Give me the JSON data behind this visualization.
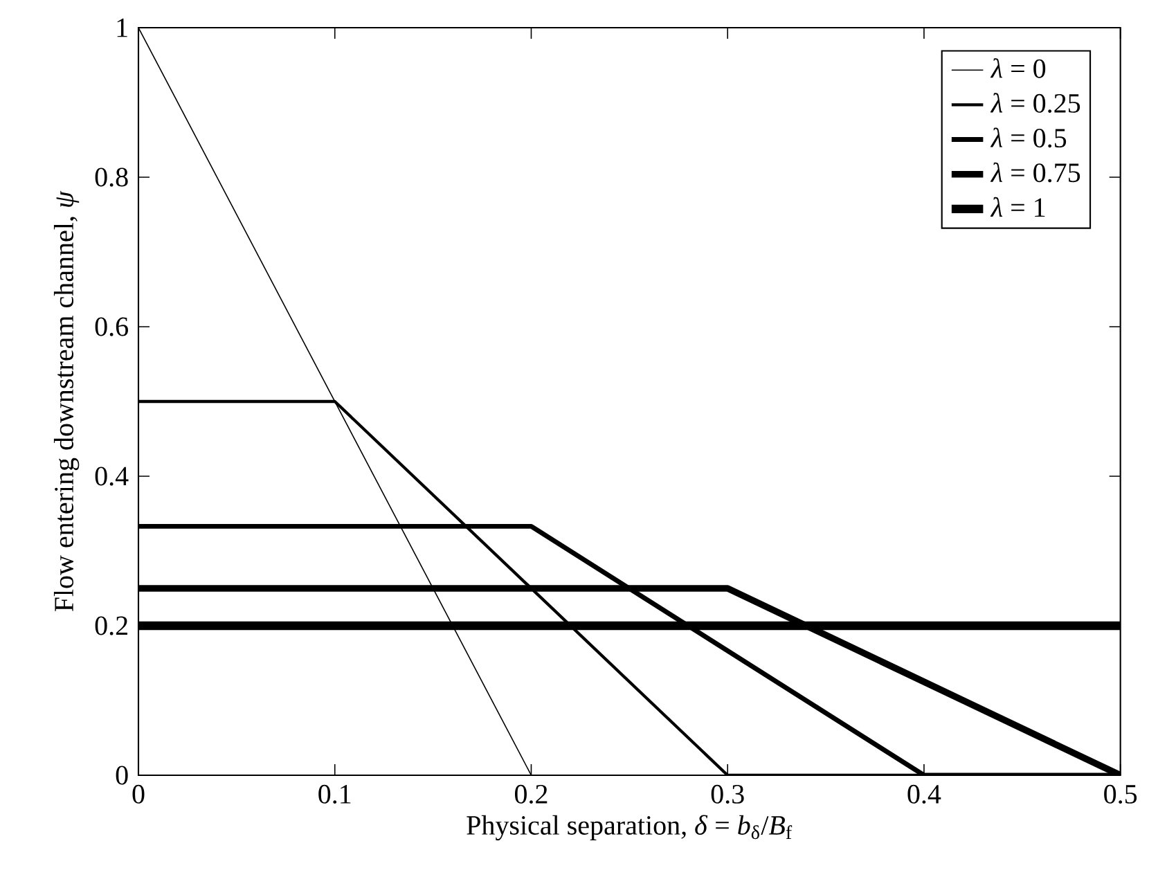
{
  "chart_data": {
    "type": "line",
    "xlabel": "Physical separation, *δ* = *b*$_{δ}$/*B*$_{f}$",
    "ylabel": "Flow entering downstream channel, *ψ*",
    "xlim": [
      0,
      0.5
    ],
    "ylim": [
      0,
      1
    ],
    "xticks": [
      0,
      0.1,
      0.2,
      0.3,
      0.4,
      0.5
    ],
    "yticks": [
      0,
      0.2,
      0.4,
      0.6,
      0.8,
      1
    ],
    "grid": false,
    "legend": "top right",
    "marker": "none",
    "line_style": "solid",
    "series": [
      {
        "name": "*λ* = 0",
        "color": "#000000",
        "x": [
          0,
          0.2,
          0.5
        ],
        "values": [
          1,
          0,
          0
        ]
      },
      {
        "name": "*λ* = 0.25",
        "color": "#000000",
        "x": [
          0,
          0.1,
          0.3,
          0.5
        ],
        "values": [
          0.5,
          0.5,
          0,
          0
        ]
      },
      {
        "name": "*λ* = 0.5",
        "color": "#000000",
        "x": [
          0,
          0.2,
          0.4,
          0.5
        ],
        "values": [
          0.333,
          0.333,
          0,
          0
        ]
      },
      {
        "name": "*λ* = 0.75",
        "color": "#000000",
        "x": [
          0,
          0.3,
          0.5
        ],
        "values": [
          0.25,
          0.25,
          0
        ]
      },
      {
        "name": "*λ* = 1",
        "color": "#000000",
        "x": [
          0,
          0.5
        ],
        "values": [
          0.2,
          0.2
        ]
      }
    ]
  }
}
